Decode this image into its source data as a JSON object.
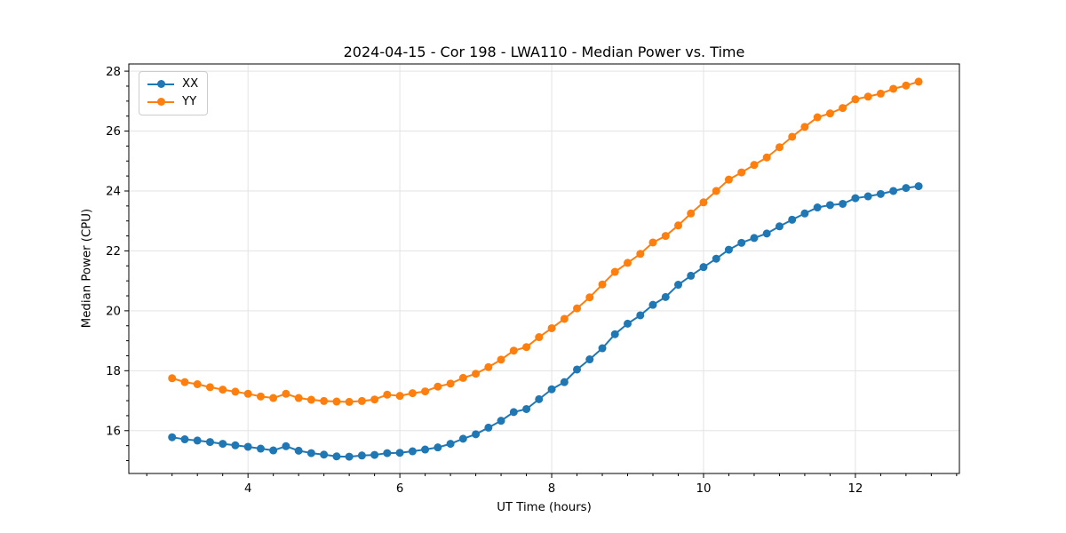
{
  "figure": {
    "title": "2024-04-15 - Cor 198 - LWA110 - Median Power vs. Time",
    "xlabel": "UT Time (hours)",
    "ylabel": "Median Power (CPU)"
  },
  "chart_data": {
    "type": "line",
    "title": "2024-04-15 - Cor 198 - LWA110 - Median Power vs. Time",
    "xlabel": "UT Time (hours)",
    "ylabel": "Median Power (CPU)",
    "xlim": [
      2.43,
      13.37
    ],
    "ylim": [
      14.57,
      28.24
    ],
    "xticks": [
      4,
      6,
      8,
      10,
      12
    ],
    "yticks": [
      16,
      18,
      20,
      22,
      24,
      26,
      28
    ],
    "x_minor_step": 0.33333,
    "y_minor_step": 0.5,
    "grid": true,
    "grid_color": "#e3e3e3",
    "legend_position": "upper left",
    "x": [
      3.0,
      3.167,
      3.333,
      3.5,
      3.667,
      3.833,
      4.0,
      4.167,
      4.333,
      4.5,
      4.667,
      4.833,
      5.0,
      5.167,
      5.333,
      5.5,
      5.667,
      5.833,
      6.0,
      6.167,
      6.333,
      6.5,
      6.667,
      6.833,
      7.0,
      7.167,
      7.333,
      7.5,
      7.667,
      7.833,
      8.0,
      8.167,
      8.333,
      8.5,
      8.667,
      8.833,
      9.0,
      9.167,
      9.333,
      9.5,
      9.667,
      9.833,
      10.0,
      10.167,
      10.333,
      10.5,
      10.667,
      10.833,
      11.0,
      11.167,
      11.333,
      11.5,
      11.667,
      11.833,
      12.0,
      12.167,
      12.333,
      12.5,
      12.667,
      12.833
    ],
    "series": [
      {
        "name": "XX",
        "color": "#1f77b4",
        "values": [
          15.78,
          15.71,
          15.67,
          15.62,
          15.56,
          15.51,
          15.46,
          15.4,
          15.34,
          15.48,
          15.33,
          15.25,
          15.2,
          15.14,
          15.13,
          15.17,
          15.19,
          15.25,
          15.26,
          15.31,
          15.37,
          15.44,
          15.56,
          15.73,
          15.88,
          16.1,
          16.33,
          16.62,
          16.72,
          17.05,
          17.38,
          17.62,
          18.04,
          18.38,
          18.75,
          19.22,
          19.57,
          19.85,
          20.2,
          20.46,
          20.87,
          21.17,
          21.46,
          21.74,
          22.04,
          22.27,
          22.43,
          22.58,
          22.82,
          23.04,
          23.25,
          23.45,
          23.53,
          23.57,
          23.76,
          23.82,
          23.9,
          24.0,
          24.1,
          24.16
        ]
      },
      {
        "name": "YY",
        "color": "#ff7f0e",
        "values": [
          17.75,
          17.62,
          17.55,
          17.45,
          17.37,
          17.3,
          17.23,
          17.14,
          17.09,
          17.23,
          17.09,
          17.03,
          16.99,
          16.97,
          16.96,
          16.99,
          17.04,
          17.2,
          17.16,
          17.25,
          17.31,
          17.47,
          17.57,
          17.76,
          17.9,
          18.12,
          18.37,
          18.67,
          18.79,
          19.12,
          19.42,
          19.73,
          20.08,
          20.45,
          20.88,
          21.3,
          21.6,
          21.9,
          22.28,
          22.5,
          22.85,
          23.25,
          23.62,
          24.0,
          24.38,
          24.62,
          24.87,
          25.12,
          25.46,
          25.81,
          26.14,
          26.46,
          26.59,
          26.77,
          27.06,
          27.15,
          27.25,
          27.41,
          27.52,
          27.65
        ]
      }
    ]
  }
}
